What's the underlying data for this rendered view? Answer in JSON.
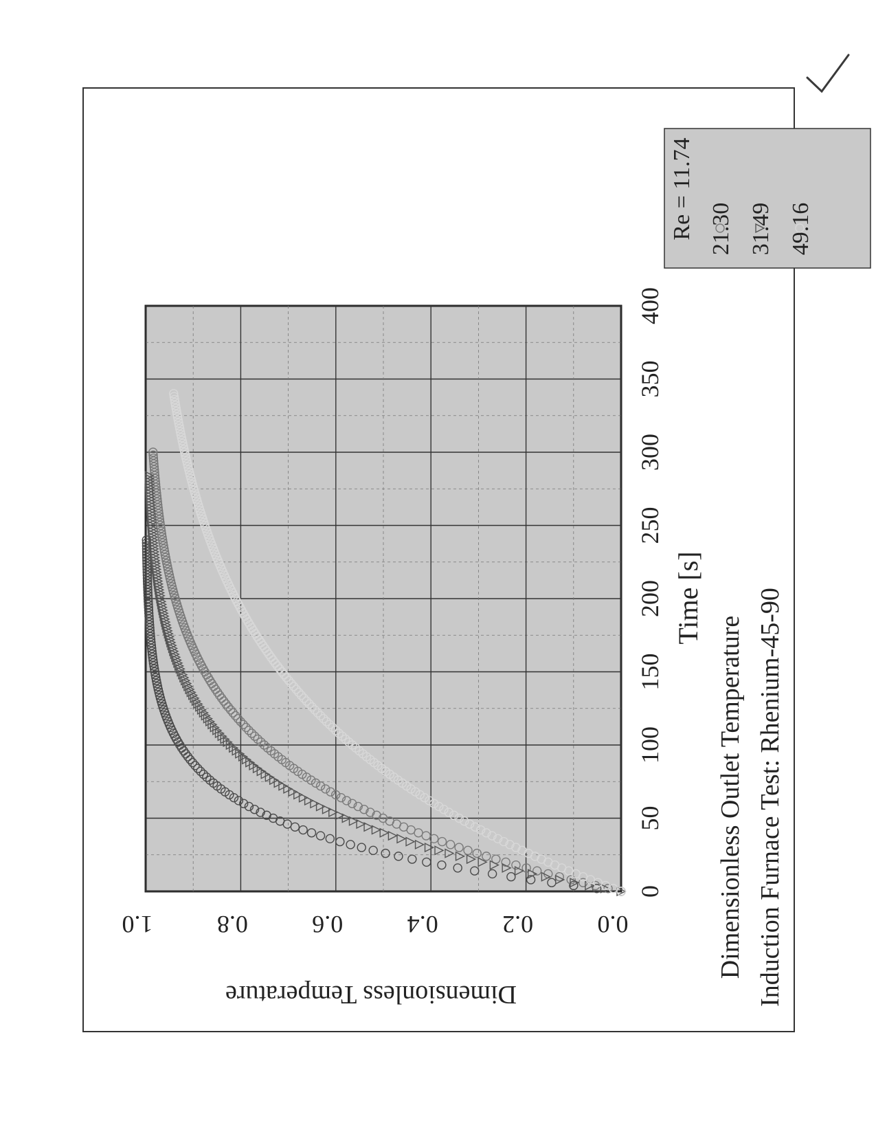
{
  "chart_data": {
    "type": "scatter",
    "orientation": "rotated-90-clockwise",
    "title_lines": [
      "Dimensionless Outlet Temperature",
      "Induction Furnace Test: Rhenium-45-90"
    ],
    "xlabel": "Time [s]",
    "ylabel": "Dimensionless Temperature",
    "xlim": [
      0,
      400
    ],
    "ylim": [
      0.0,
      1.0
    ],
    "x_ticks": [
      "0",
      "50",
      "100",
      "150",
      "200",
      "250",
      "300",
      "350",
      "400"
    ],
    "y_ticks": [
      "0.0",
      "0.2",
      "0.4",
      "0.6",
      "0.8",
      "1.0"
    ],
    "grid": true,
    "legend_placement": "top-right",
    "legend_prefix": "Re = ",
    "series": [
      {
        "name": "11.74",
        "marker": "circle",
        "color": "#4a4a4a",
        "tau": 38,
        "t_end": 240
      },
      {
        "name": "21.30",
        "marker": "circle",
        "color": "#7a7a7a",
        "tau": 72,
        "t_end": 300
      },
      {
        "name": "31.49",
        "marker": "triangle-down",
        "color": "#555555",
        "tau": 58,
        "t_end": 285
      },
      {
        "name": "49.16",
        "marker": "circle",
        "color": "#d8d8d8",
        "tau": 120,
        "t_end": 340
      }
    ]
  },
  "annotation": {
    "checkmark": "✓"
  }
}
